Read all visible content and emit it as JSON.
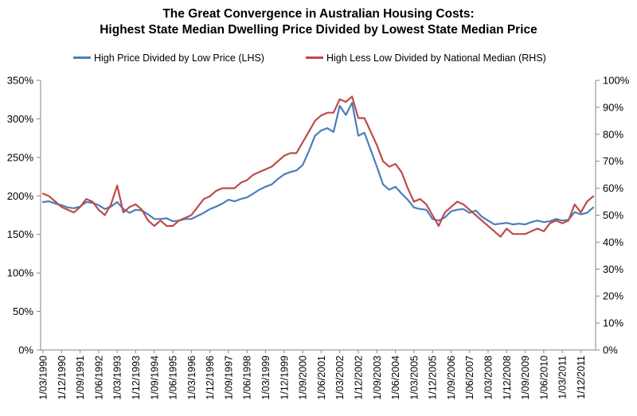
{
  "chart_data": {
    "type": "line",
    "title": [
      "The Great Convergence in Australian Housing Costs:",
      "Highest State Median Dwelling Price Divided by Lowest State Median Price"
    ],
    "xlabel": "",
    "ylabel": "",
    "x_tick_labels": [
      "1/03/1990",
      "1/12/1990",
      "1/09/1991",
      "1/06/1992",
      "1/03/1993",
      "1/12/1993",
      "1/09/1994",
      "1/06/1995",
      "1/03/1996",
      "1/12/1996",
      "1/09/1997",
      "1/06/1998",
      "1/03/1999",
      "1/12/1999",
      "1/09/2000",
      "1/06/2001",
      "1/03/2002",
      "1/12/2002",
      "1/09/2003",
      "1/06/2004",
      "1/03/2005",
      "1/12/2005",
      "1/09/2006",
      "1/06/2007",
      "1/03/2008",
      "1/12/2008",
      "1/09/2009",
      "1/06/2010",
      "1/03/2011",
      "1/12/2011"
    ],
    "y_left": {
      "ylim": [
        0,
        350
      ],
      "ticks": [
        0,
        50,
        100,
        150,
        200,
        250,
        300,
        350
      ],
      "tick_labels": [
        "0%",
        "50%",
        "100%",
        "150%",
        "200%",
        "250%",
        "300%",
        "350%"
      ]
    },
    "y_right": {
      "ylim": [
        0,
        100
      ],
      "ticks": [
        0,
        10,
        20,
        30,
        40,
        50,
        60,
        70,
        80,
        90,
        100
      ],
      "tick_labels": [
        "0%",
        "10%",
        "20%",
        "30%",
        "40%",
        "50%",
        "60%",
        "70%",
        "80%",
        "90%",
        "100%"
      ]
    },
    "grid": false,
    "legend_position": "top",
    "series": [
      {
        "name": "High Price Divided by Low Price (LHS)",
        "color": "#4a7ebb",
        "axis": "left",
        "points": [
          [
            "1990-03",
            192
          ],
          [
            "1990-06",
            193
          ],
          [
            "1990-09",
            190
          ],
          [
            "1990-12",
            188
          ],
          [
            "1991-03",
            185
          ],
          [
            "1991-06",
            184
          ],
          [
            "1991-09",
            186
          ],
          [
            "1991-12",
            192
          ],
          [
            "1992-03",
            191
          ],
          [
            "1992-06",
            188
          ],
          [
            "1992-09",
            183
          ],
          [
            "1992-12",
            186
          ],
          [
            "1993-03",
            192
          ],
          [
            "1993-06",
            183
          ],
          [
            "1993-09",
            178
          ],
          [
            "1993-12",
            182
          ],
          [
            "1994-03",
            181
          ],
          [
            "1994-06",
            176
          ],
          [
            "1994-09",
            170
          ],
          [
            "1994-12",
            170
          ],
          [
            "1995-03",
            171
          ],
          [
            "1995-06",
            167
          ],
          [
            "1995-09",
            168
          ],
          [
            "1995-12",
            170
          ],
          [
            "1996-03",
            170
          ],
          [
            "1996-06",
            174
          ],
          [
            "1996-09",
            178
          ],
          [
            "1996-12",
            183
          ],
          [
            "1997-03",
            186
          ],
          [
            "1997-06",
            190
          ],
          [
            "1997-09",
            195
          ],
          [
            "1997-12",
            193
          ],
          [
            "1998-03",
            196
          ],
          [
            "1998-06",
            198
          ],
          [
            "1998-09",
            203
          ],
          [
            "1998-12",
            208
          ],
          [
            "1999-03",
            212
          ],
          [
            "1999-06",
            215
          ],
          [
            "1999-09",
            222
          ],
          [
            "1999-12",
            228
          ],
          [
            "2000-03",
            231
          ],
          [
            "2000-06",
            233
          ],
          [
            "2000-09",
            240
          ],
          [
            "2000-12",
            258
          ],
          [
            "2001-03",
            278
          ],
          [
            "2001-06",
            285
          ],
          [
            "2001-09",
            288
          ],
          [
            "2001-12",
            283
          ],
          [
            "2002-03",
            317
          ],
          [
            "2002-06",
            305
          ],
          [
            "2002-09",
            321
          ],
          [
            "2002-12",
            278
          ],
          [
            "2003-03",
            282
          ],
          [
            "2003-06",
            260
          ],
          [
            "2003-09",
            238
          ],
          [
            "2003-12",
            215
          ],
          [
            "2004-03",
            208
          ],
          [
            "2004-06",
            212
          ],
          [
            "2004-09",
            203
          ],
          [
            "2004-12",
            195
          ],
          [
            "2005-03",
            185
          ],
          [
            "2005-06",
            183
          ],
          [
            "2005-09",
            182
          ],
          [
            "2005-12",
            170
          ],
          [
            "2006-03",
            168
          ],
          [
            "2006-06",
            172
          ],
          [
            "2006-09",
            180
          ],
          [
            "2006-12",
            182
          ],
          [
            "2007-03",
            183
          ],
          [
            "2007-06",
            178
          ],
          [
            "2007-09",
            181
          ],
          [
            "2007-12",
            173
          ],
          [
            "2008-03",
            168
          ],
          [
            "2008-06",
            163
          ],
          [
            "2008-09",
            164
          ],
          [
            "2008-12",
            165
          ],
          [
            "2009-03",
            163
          ],
          [
            "2009-06",
            164
          ],
          [
            "2009-09",
            163
          ],
          [
            "2009-12",
            166
          ],
          [
            "2010-03",
            168
          ],
          [
            "2010-06",
            166
          ],
          [
            "2010-09",
            167
          ],
          [
            "2010-12",
            170
          ],
          [
            "2011-03",
            168
          ],
          [
            "2011-06",
            169
          ],
          [
            "2011-09",
            179
          ],
          [
            "2011-12",
            176
          ],
          [
            "2012-03",
            178
          ],
          [
            "2012-06",
            185
          ]
        ]
      },
      {
        "name": "High Less Low Divided by National Median (RHS)",
        "color": "#be4b48",
        "axis": "right",
        "points": [
          [
            "1990-03",
            58
          ],
          [
            "1990-06",
            57
          ],
          [
            "1990-09",
            55
          ],
          [
            "1990-12",
            53
          ],
          [
            "1991-03",
            52
          ],
          [
            "1991-06",
            51
          ],
          [
            "1991-09",
            53
          ],
          [
            "1991-12",
            56
          ],
          [
            "1992-03",
            55
          ],
          [
            "1992-06",
            52
          ],
          [
            "1992-09",
            50
          ],
          [
            "1992-12",
            54
          ],
          [
            "1993-03",
            61
          ],
          [
            "1993-06",
            51
          ],
          [
            "1993-09",
            53
          ],
          [
            "1993-12",
            54
          ],
          [
            "1994-03",
            52
          ],
          [
            "1994-06",
            48
          ],
          [
            "1994-09",
            46
          ],
          [
            "1994-12",
            48
          ],
          [
            "1995-03",
            46
          ],
          [
            "1995-06",
            46
          ],
          [
            "1995-09",
            48
          ],
          [
            "1995-12",
            49
          ],
          [
            "1996-03",
            50
          ],
          [
            "1996-06",
            53
          ],
          [
            "1996-09",
            56
          ],
          [
            "1996-12",
            57
          ],
          [
            "1997-03",
            59
          ],
          [
            "1997-06",
            60
          ],
          [
            "1997-09",
            60
          ],
          [
            "1997-12",
            60
          ],
          [
            "1998-03",
            62
          ],
          [
            "1998-06",
            63
          ],
          [
            "1998-09",
            65
          ],
          [
            "1998-12",
            66
          ],
          [
            "1999-03",
            67
          ],
          [
            "1999-06",
            68
          ],
          [
            "1999-09",
            70
          ],
          [
            "1999-12",
            72
          ],
          [
            "2000-03",
            73
          ],
          [
            "2000-06",
            73
          ],
          [
            "2000-09",
            77
          ],
          [
            "2000-12",
            81
          ],
          [
            "2001-03",
            85
          ],
          [
            "2001-06",
            87
          ],
          [
            "2001-09",
            88
          ],
          [
            "2001-12",
            88
          ],
          [
            "2002-03",
            93
          ],
          [
            "2002-06",
            92
          ],
          [
            "2002-09",
            94
          ],
          [
            "2002-12",
            86
          ],
          [
            "2003-03",
            86
          ],
          [
            "2003-06",
            81
          ],
          [
            "2003-09",
            76
          ],
          [
            "2003-12",
            70
          ],
          [
            "2004-03",
            68
          ],
          [
            "2004-06",
            69
          ],
          [
            "2004-09",
            66
          ],
          [
            "2004-12",
            60
          ],
          [
            "2005-03",
            55
          ],
          [
            "2005-06",
            56
          ],
          [
            "2005-09",
            54
          ],
          [
            "2005-12",
            50
          ],
          [
            "2006-03",
            46
          ],
          [
            "2006-06",
            51
          ],
          [
            "2006-09",
            53
          ],
          [
            "2006-12",
            55
          ],
          [
            "2007-03",
            54
          ],
          [
            "2007-06",
            52
          ],
          [
            "2007-09",
            50
          ],
          [
            "2007-12",
            48
          ],
          [
            "2008-03",
            46
          ],
          [
            "2008-06",
            44
          ],
          [
            "2008-09",
            42
          ],
          [
            "2008-12",
            45
          ],
          [
            "2009-03",
            43
          ],
          [
            "2009-06",
            43
          ],
          [
            "2009-09",
            43
          ],
          [
            "2009-12",
            44
          ],
          [
            "2010-03",
            45
          ],
          [
            "2010-06",
            44
          ],
          [
            "2010-09",
            47
          ],
          [
            "2010-12",
            48
          ],
          [
            "2011-03",
            47
          ],
          [
            "2011-06",
            48
          ],
          [
            "2011-09",
            54
          ],
          [
            "2011-12",
            51
          ],
          [
            "2012-03",
            55
          ],
          [
            "2012-06",
            57
          ]
        ]
      }
    ]
  }
}
